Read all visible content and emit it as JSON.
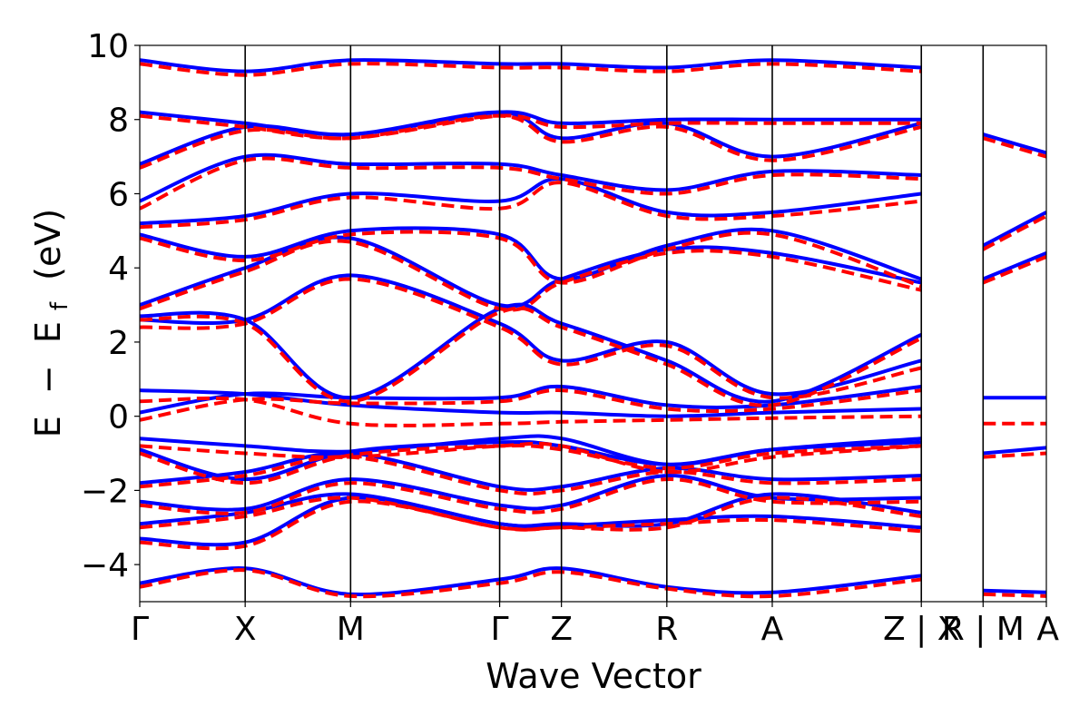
{
  "chart_data": {
    "type": "line",
    "xlabel": "Wave Vector",
    "ylabel_parts": [
      "E",
      "−",
      "E",
      "f",
      "(eV)"
    ],
    "ylim": [
      -5,
      10
    ],
    "yticks": [
      -4,
      -2,
      0,
      2,
      4,
      6,
      8,
      10
    ],
    "ytick_labels": [
      "−4",
      "−2",
      "0",
      "2",
      "4",
      "6",
      "8",
      "10"
    ],
    "kpoints": [
      {
        "label": "Γ",
        "pos": 0
      },
      {
        "label": "X",
        "pos": 1
      },
      {
        "label": "M",
        "pos": 2
      },
      {
        "label": "Γ",
        "pos": 3.414
      },
      {
        "label": "Z",
        "pos": 4.0
      },
      {
        "label": "R",
        "pos": 5.0
      },
      {
        "label": "A",
        "pos": 6.0
      },
      {
        "label": "Z | X",
        "pos": 7.414
      },
      {
        "label": "R | M",
        "pos": 8.0
      },
      {
        "label": "A",
        "pos": 8.6
      }
    ],
    "grid": false,
    "legend": "none",
    "series_styles": [
      {
        "color": "#0000ff",
        "dash": "solid"
      },
      {
        "color": "#ff0000",
        "dash": "dashed"
      }
    ],
    "series": [
      {
        "bands": [
          {
            "x": [
              0,
              1,
              2,
              3.414,
              4,
              5,
              6,
              7.414
            ],
            "y": [
              -4.5,
              -4.1,
              -4.8,
              -4.4,
              -4.1,
              -4.6,
              -4.75,
              -4.3
            ]
          },
          {
            "x": [
              0,
              1,
              2,
              3.414,
              4,
              5,
              6,
              7.414
            ],
            "y": [
              -3.3,
              -3.4,
              -2.2,
              -2.9,
              -2.95,
              -2.8,
              -2.7,
              -3.0
            ]
          },
          {
            "x": [
              0,
              1,
              2,
              3.414,
              4,
              5,
              6,
              7.414
            ],
            "y": [
              -2.9,
              -2.6,
              -2.1,
              -2.9,
              -2.9,
              -2.9,
              -2.1,
              -2.6
            ]
          },
          {
            "x": [
              0,
              1,
              2,
              3.414,
              4,
              5,
              6,
              7.414
            ],
            "y": [
              -2.3,
              -2.5,
              -1.7,
              -2.4,
              -2.4,
              -1.6,
              -2.2,
              -2.2
            ]
          },
          {
            "x": [
              0,
              1,
              2,
              3.414,
              4,
              5,
              6,
              7.414
            ],
            "y": [
              -1.8,
              -1.5,
              -1.0,
              -1.9,
              -1.9,
              -1.4,
              -1.7,
              -1.6
            ]
          },
          {
            "x": [
              0,
              1,
              2,
              3.414,
              4,
              5,
              6,
              7.414
            ],
            "y": [
              -0.9,
              -1.7,
              -0.95,
              -0.7,
              -0.8,
              -1.3,
              -0.9,
              -0.7
            ]
          },
          {
            "x": [
              0,
              1,
              2,
              3.414,
              4,
              5,
              6,
              7.414
            ],
            "y": [
              -0.6,
              -0.8,
              -0.95,
              -0.6,
              -0.6,
              -1.3,
              -0.9,
              -0.6
            ]
          },
          {
            "x": [
              0,
              1,
              2,
              3.414,
              4,
              5,
              6,
              7.414
            ],
            "y": [
              0.1,
              0.6,
              0.5,
              0.5,
              0.8,
              0.3,
              0.3,
              0.8
            ]
          },
          {
            "x": [
              0,
              1,
              2,
              3.414,
              4,
              5,
              6,
              7.414
            ],
            "y": [
              0.7,
              0.6,
              0.3,
              0.1,
              0.1,
              0.0,
              0.1,
              0.2
            ]
          },
          {
            "x": [
              0,
              1,
              2,
              3.414,
              4,
              5,
              6,
              7.414
            ],
            "y": [
              2.7,
              2.6,
              0.5,
              2.9,
              2.5,
              1.5,
              0.4,
              2.2
            ]
          },
          {
            "x": [
              0,
              1,
              2,
              3.414,
              4,
              5,
              6,
              7.414
            ],
            "y": [
              2.6,
              2.6,
              3.8,
              2.5,
              1.5,
              2.0,
              0.6,
              1.5
            ]
          },
          {
            "x": [
              0,
              1,
              2,
              3.414,
              4,
              5,
              6,
              7.414
            ],
            "y": [
              3.0,
              4.0,
              4.8,
              3.0,
              3.7,
              4.5,
              4.4,
              3.6
            ]
          },
          {
            "x": [
              0,
              1,
              2,
              3.414,
              4,
              5,
              6,
              7.414
            ],
            "y": [
              4.9,
              4.3,
              5.0,
              4.9,
              3.7,
              4.6,
              5.0,
              3.7
            ]
          },
          {
            "x": [
              0,
              1,
              2,
              3.414,
              4,
              5,
              6,
              7.414
            ],
            "y": [
              5.2,
              5.4,
              6.0,
              5.8,
              6.4,
              5.5,
              5.5,
              6.0
            ]
          },
          {
            "x": [
              0,
              1,
              2,
              3.414,
              4,
              5,
              6,
              7.414
            ],
            "y": [
              5.8,
              7.0,
              6.8,
              6.8,
              6.5,
              6.1,
              6.6,
              6.5
            ]
          },
          {
            "x": [
              0,
              1,
              2,
              3.414,
              4,
              5,
              6,
              7.414
            ],
            "y": [
              6.8,
              7.8,
              7.6,
              8.2,
              7.5,
              7.9,
              7.0,
              7.9
            ]
          },
          {
            "x": [
              0,
              1,
              2,
              3.414,
              4,
              5,
              6,
              7.414
            ],
            "y": [
              8.2,
              7.9,
              7.6,
              8.2,
              7.9,
              8.0,
              8.0,
              8.0
            ]
          },
          {
            "x": [
              0,
              1,
              2,
              3.414,
              4,
              5,
              6,
              7.414
            ],
            "y": [
              9.6,
              9.3,
              9.6,
              9.5,
              9.5,
              9.4,
              9.6,
              9.4
            ]
          },
          {
            "x": [
              8,
              8.6
            ],
            "y": [
              -4.7,
              -4.75
            ]
          },
          {
            "x": [
              8,
              8.6
            ],
            "y": [
              -1.0,
              -0.85
            ]
          },
          {
            "x": [
              8,
              8.6
            ],
            "y": [
              0.5,
              0.5
            ]
          },
          {
            "x": [
              8,
              8.6
            ],
            "y": [
              3.7,
              4.4
            ]
          },
          {
            "x": [
              8,
              8.6
            ],
            "y": [
              4.6,
              5.5
            ]
          },
          {
            "x": [
              8,
              8.6
            ],
            "y": [
              7.6,
              7.1
            ]
          }
        ]
      },
      {
        "bands": [
          {
            "x": [
              0,
              1,
              2,
              3.414,
              4,
              5,
              6,
              7.414
            ],
            "y": [
              -4.6,
              -4.15,
              -4.85,
              -4.5,
              -4.2,
              -4.65,
              -4.85,
              -4.4
            ]
          },
          {
            "x": [
              0,
              1,
              2,
              3.414,
              4,
              5,
              6,
              7.414
            ],
            "y": [
              -3.4,
              -3.5,
              -2.3,
              -3.0,
              -3.0,
              -2.9,
              -2.8,
              -3.1
            ]
          },
          {
            "x": [
              0,
              1,
              2,
              3.414,
              4,
              5,
              6,
              7.414
            ],
            "y": [
              -3.0,
              -2.7,
              -2.2,
              -3.0,
              -3.0,
              -3.0,
              -2.2,
              -2.7
            ]
          },
          {
            "x": [
              0,
              1,
              2,
              3.414,
              4,
              5,
              6,
              7.414
            ],
            "y": [
              -2.4,
              -2.6,
              -1.8,
              -2.5,
              -2.5,
              -1.7,
              -2.3,
              -2.3
            ]
          },
          {
            "x": [
              0,
              1,
              2,
              3.414,
              4,
              5,
              6,
              7.414
            ],
            "y": [
              -1.9,
              -1.6,
              -1.1,
              -2.0,
              -2.0,
              -1.5,
              -1.8,
              -1.7
            ]
          },
          {
            "x": [
              0,
              1,
              2,
              3.414,
              4,
              5,
              6,
              7.414
            ],
            "y": [
              -1.0,
              -1.8,
              -1.05,
              -0.8,
              -0.9,
              -1.4,
              -1.0,
              -0.8
            ]
          },
          {
            "x": [
              0,
              1,
              2,
              3.414,
              4,
              5,
              6,
              7.414
            ],
            "y": [
              -0.8,
              -1.0,
              -1.1,
              -0.8,
              -0.8,
              -1.5,
              -1.1,
              -0.8
            ]
          },
          {
            "x": [
              0,
              1,
              2,
              3.414,
              4,
              5,
              6,
              7.414
            ],
            "y": [
              -0.1,
              0.45,
              0.35,
              0.4,
              0.7,
              0.2,
              0.2,
              0.7
            ]
          },
          {
            "x": [
              0,
              1,
              2,
              3.414,
              4,
              5,
              6,
              7.414
            ],
            "y": [
              0.4,
              0.45,
              -0.2,
              -0.2,
              -0.15,
              -0.1,
              -0.05,
              0.0
            ]
          },
          {
            "x": [
              0,
              1,
              2,
              3.414,
              4,
              5,
              6,
              7.414
            ],
            "y": [
              2.6,
              2.5,
              0.4,
              2.8,
              2.4,
              1.4,
              0.3,
              2.1
            ]
          },
          {
            "x": [
              0,
              1,
              2,
              3.414,
              4,
              5,
              6,
              7.414
            ],
            "y": [
              2.4,
              2.5,
              3.7,
              2.4,
              1.4,
              1.9,
              0.5,
              1.3
            ]
          },
          {
            "x": [
              0,
              1,
              2,
              3.414,
              4,
              5,
              6,
              7.414
            ],
            "y": [
              2.9,
              3.9,
              4.7,
              2.9,
              3.6,
              4.4,
              4.3,
              3.4
            ]
          },
          {
            "x": [
              0,
              1,
              2,
              3.414,
              4,
              5,
              6,
              7.414
            ],
            "y": [
              4.8,
              4.2,
              4.9,
              4.8,
              3.6,
              4.5,
              4.9,
              3.5
            ]
          },
          {
            "x": [
              0,
              1,
              2,
              3.414,
              4,
              5,
              6,
              7.414
            ],
            "y": [
              5.1,
              5.3,
              5.9,
              5.6,
              6.3,
              5.4,
              5.4,
              5.8
            ]
          },
          {
            "x": [
              0,
              1,
              2,
              3.414,
              4,
              5,
              6,
              7.414
            ],
            "y": [
              5.6,
              6.9,
              6.7,
              6.7,
              6.4,
              6.0,
              6.5,
              6.4
            ]
          },
          {
            "x": [
              0,
              1,
              2,
              3.414,
              4,
              5,
              6,
              7.414
            ],
            "y": [
              6.7,
              7.7,
              7.5,
              8.1,
              7.4,
              7.8,
              6.9,
              7.8
            ]
          },
          {
            "x": [
              0,
              1,
              2,
              3.414,
              4,
              5,
              6,
              7.414
            ],
            "y": [
              8.1,
              7.8,
              7.5,
              8.1,
              7.8,
              7.9,
              7.9,
              7.9
            ]
          },
          {
            "x": [
              0,
              1,
              2,
              3.414,
              4,
              5,
              6,
              7.414
            ],
            "y": [
              9.5,
              9.2,
              9.5,
              9.4,
              9.4,
              9.3,
              9.5,
              9.3
            ]
          },
          {
            "x": [
              8,
              8.6
            ],
            "y": [
              -4.8,
              -4.85
            ]
          },
          {
            "x": [
              8,
              8.6
            ],
            "y": [
              -1.1,
              -1.0
            ]
          },
          {
            "x": [
              8,
              8.6
            ],
            "y": [
              -0.2,
              -0.2
            ]
          },
          {
            "x": [
              8,
              8.6
            ],
            "y": [
              3.6,
              4.3
            ]
          },
          {
            "x": [
              8,
              8.6
            ],
            "y": [
              4.5,
              5.4
            ]
          },
          {
            "x": [
              8,
              8.6
            ],
            "y": [
              7.5,
              7.0
            ]
          }
        ]
      }
    ]
  }
}
